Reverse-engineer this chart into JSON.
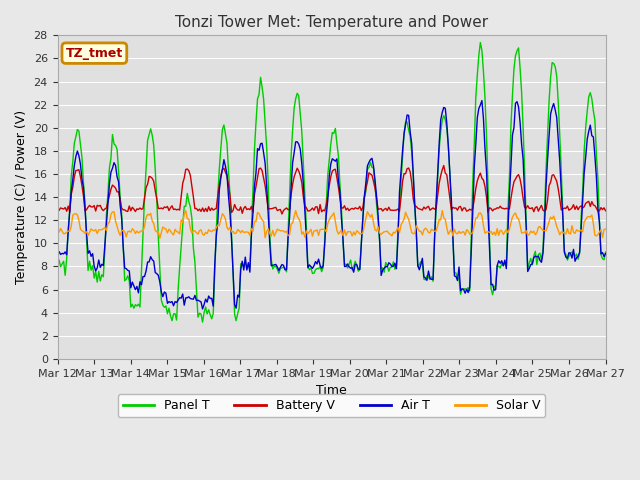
{
  "title": "Tonzi Tower Met: Temperature and Power",
  "xlabel": "Time",
  "ylabel": "Temperature (C) / Power (V)",
  "ylim": [
    0,
    28
  ],
  "x_tick_labels": [
    "Mar 12",
    "Mar 13",
    "Mar 14",
    "Mar 15",
    "Mar 16",
    "Mar 17",
    "Mar 18",
    "Mar 19",
    "Mar 20",
    "Mar 21",
    "Mar 22",
    "Mar 23",
    "Mar 24",
    "Mar 25",
    "Mar 26",
    "Mar 27"
  ],
  "legend_label": "TZ_tmet",
  "legend_border_color": "#cc8800",
  "legend_bg_color": "#ffffdd",
  "colors": {
    "Panel T": "#00cc00",
    "Battery V": "#cc0000",
    "Air T": "#0000cc",
    "Solar V": "#ff9900"
  },
  "fig_bg_color": "#e8e8e8",
  "plot_bg_color": "#e0e0e0",
  "grid_color": "#ffffff"
}
